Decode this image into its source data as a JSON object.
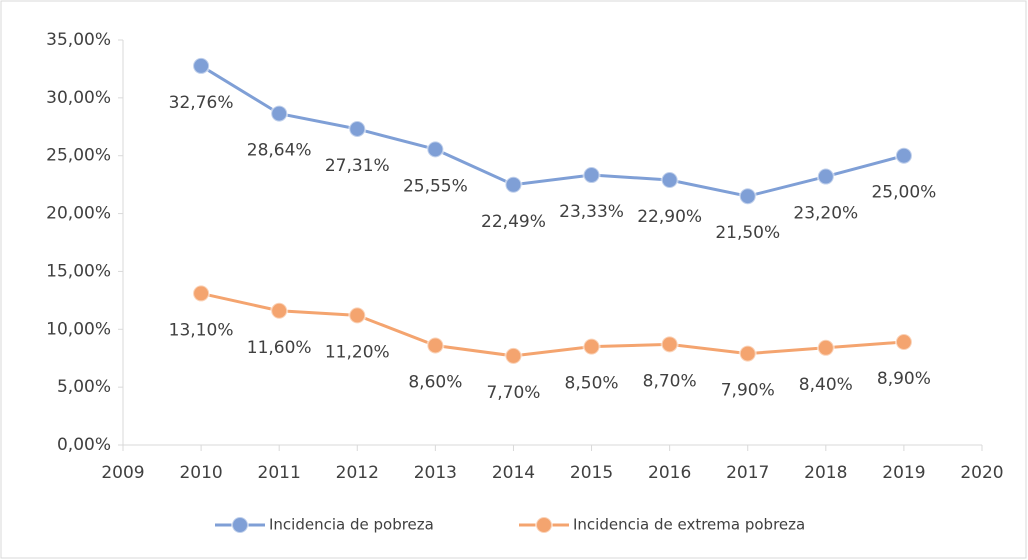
{
  "chart_data": {
    "type": "line",
    "x": [
      2010,
      2011,
      2012,
      2013,
      2014,
      2015,
      2016,
      2017,
      2018,
      2019
    ],
    "series": [
      {
        "name": "Incidencia de pobreza",
        "color": "#7f9fd6",
        "values": [
          32.76,
          28.64,
          27.31,
          25.55,
          22.49,
          23.33,
          22.9,
          21.5,
          23.2,
          25.0
        ],
        "value_labels": [
          "32,76%",
          "28,64%",
          "27,31%",
          "25,55%",
          "22,49%",
          "23,33%",
          "22,90%",
          "21,50%",
          "23,20%",
          "25,00%"
        ]
      },
      {
        "name": "Incidencia de extrema pobreza",
        "color": "#f4a46f",
        "values": [
          13.1,
          11.6,
          11.2,
          8.6,
          7.7,
          8.5,
          8.7,
          7.9,
          8.4,
          8.9
        ],
        "value_labels": [
          "13,10%",
          "11,60%",
          "11,20%",
          "8,60%",
          "7,70%",
          "8,50%",
          "8,70%",
          "7,90%",
          "8,40%",
          "8,90%"
        ]
      }
    ],
    "xlim": [
      2009,
      2020
    ],
    "xticks": [
      2009,
      2010,
      2011,
      2012,
      2013,
      2014,
      2015,
      2016,
      2017,
      2018,
      2019,
      2020
    ],
    "ylim": [
      0,
      35
    ],
    "yticks": [
      {
        "value": 0,
        "label": "0,00%"
      },
      {
        "value": 5,
        "label": "5,00%"
      },
      {
        "value": 10,
        "label": "10,00%"
      },
      {
        "value": 15,
        "label": "15,00%"
      },
      {
        "value": 20,
        "label": "20,00%"
      },
      {
        "value": 25,
        "label": "25,00%"
      },
      {
        "value": 30,
        "label": "30,00%"
      },
      {
        "value": 35,
        "label": "35,00%"
      }
    ],
    "grid": false,
    "legend": "bottom"
  }
}
